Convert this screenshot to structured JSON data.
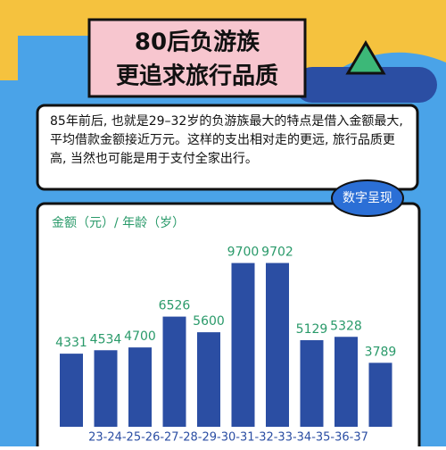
{
  "header": {
    "title_line1": "80后负游族",
    "title_line2": "更追求旅行品质"
  },
  "description": "85年前后, 也就是29–32岁的负游族最大的特点是借入金额最大, 平均借款金额接近万元。这样的支出相对走的更远, 旅行品质更高, 当然也可能是用于支付全家出行。",
  "badge": "数字呈现",
  "chart_data": {
    "type": "bar",
    "title": "金额（元）/ 年龄（岁）",
    "x_axis_text": "23-24-25-26-27-28-29-30-31-32-33-34-35-36-37",
    "values": [
      4331,
      4534,
      4700,
      6526,
      5600,
      9700,
      9702,
      5129,
      5328,
      3789
    ],
    "color": "#2b4ea3",
    "label_color": "#2a9a6a",
    "ylim": [
      0,
      11000
    ]
  }
}
